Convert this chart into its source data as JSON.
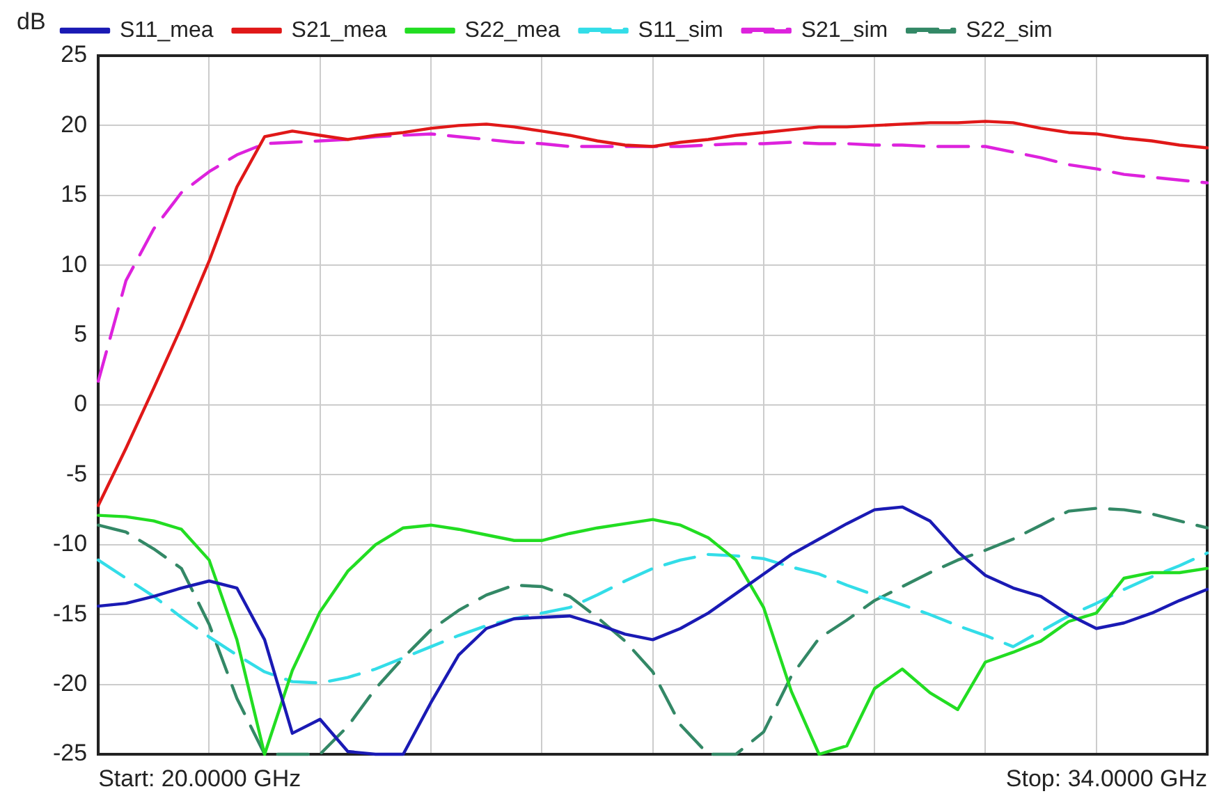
{
  "chart_data": {
    "type": "line",
    "ylabel": "dB",
    "categories": [
      null,
      null,
      null,
      null,
      null,
      null,
      null,
      null,
      null,
      null,
      null,
      null,
      null,
      null,
      null,
      null,
      null,
      null,
      null,
      null,
      null,
      null,
      null,
      null,
      null,
      null,
      null,
      null,
      null,
      null,
      null,
      null,
      null,
      null,
      null,
      null,
      null,
      null,
      null,
      null,
      null
    ],
    "ylim": [
      -25,
      25
    ],
    "yticks": [
      -25,
      -20,
      -15,
      -10,
      -5,
      0,
      5,
      10,
      15,
      20,
      25
    ],
    "tick_labels": "y",
    "grid": true,
    "legend": "top",
    "marker": "none",
    "annotations": [
      "Start: 20.0000 GHz",
      "Stop: 34.0000 GHz"
    ],
    "series": [
      {
        "name": "S11_mea",
        "color": "#1a1ab4",
        "line_style": "solid",
        "values": [
          -14.4,
          -14.2,
          -13.7,
          -13.1,
          -12.6,
          -13.1,
          -16.8,
          -23.5,
          -22.5,
          -24.8,
          -25,
          -25,
          -21.3,
          -17.9,
          -16.0,
          -15.3,
          -15.2,
          -15.1,
          -15.7,
          -16.4,
          -16.8,
          -16.0,
          -14.9,
          -13.5,
          -12.1,
          -10.7,
          -9.6,
          -8.5,
          -7.5,
          -7.3,
          -8.3,
          -10.5,
          -12.2,
          -13.1,
          -13.7,
          -15.0,
          -16.0,
          -15.6,
          -14.9,
          -14.0,
          -13.2
        ]
      },
      {
        "name": "S21_mea",
        "color": "#e01818",
        "line_style": "solid",
        "values": [
          -7.2,
          -3.1,
          1.2,
          5.6,
          10.3,
          15.6,
          19.2,
          19.6,
          19.3,
          19.0,
          19.3,
          19.5,
          19.8,
          20.0,
          20.1,
          19.9,
          19.6,
          19.3,
          18.9,
          18.6,
          18.5,
          18.8,
          19.0,
          19.3,
          19.5,
          19.7,
          19.9,
          19.9,
          20.0,
          20.1,
          20.2,
          20.2,
          20.3,
          20.2,
          19.8,
          19.5,
          19.4,
          19.1,
          18.9,
          18.6,
          18.4
        ]
      },
      {
        "name": "S22_mea",
        "color": "#22dd22",
        "line_style": "solid",
        "values": [
          -7.9,
          -8.0,
          -8.3,
          -8.9,
          -11.1,
          -16.8,
          -25,
          -19.0,
          -14.8,
          -11.9,
          -10.0,
          -8.8,
          -8.6,
          -8.9,
          -9.3,
          -9.7,
          -9.7,
          -9.2,
          -8.8,
          -8.5,
          -8.2,
          -8.6,
          -9.5,
          -11.1,
          -14.5,
          -20.5,
          -25,
          -24.4,
          -20.3,
          -18.9,
          -20.6,
          -21.8,
          -18.4,
          -17.7,
          -16.9,
          -15.5,
          -14.9,
          -12.4,
          -12.0,
          -12.0,
          -11.7
        ]
      },
      {
        "name": "S11_sim",
        "color": "#33dde8",
        "line_style": "dashed",
        "values": [
          -11.1,
          -12.4,
          -13.7,
          -15.2,
          -16.6,
          -17.9,
          -19.1,
          -19.8,
          -19.9,
          -19.5,
          -18.9,
          -18.1,
          -17.3,
          -16.5,
          -15.8,
          -15.3,
          -14.9,
          -14.5,
          -13.6,
          -12.6,
          -11.7,
          -11.1,
          -10.7,
          -10.8,
          -11.0,
          -11.6,
          -12.1,
          -12.9,
          -13.6,
          -14.3,
          -15.0,
          -15.8,
          -16.5,
          -17.3,
          -16.2,
          -15.1,
          -14.2,
          -13.2,
          -12.3,
          -11.5,
          -10.6
        ]
      },
      {
        "name": "S21_sim",
        "color": "#dd22dd",
        "line_style": "dashed",
        "values": [
          1.7,
          8.9,
          12.6,
          15.2,
          16.7,
          17.9,
          18.7,
          18.8,
          18.9,
          19.0,
          19.2,
          19.3,
          19.4,
          19.2,
          19.0,
          18.8,
          18.7,
          18.5,
          18.5,
          18.5,
          18.5,
          18.5,
          18.6,
          18.7,
          18.7,
          18.8,
          18.7,
          18.7,
          18.6,
          18.6,
          18.5,
          18.5,
          18.5,
          18.1,
          17.7,
          17.2,
          16.9,
          16.5,
          16.3,
          16.1,
          15.9
        ]
      },
      {
        "name": "S22_sim",
        "color": "#338866",
        "line_style": "dashed",
        "values": [
          -8.6,
          -9.1,
          -10.3,
          -11.7,
          -15.7,
          -21.0,
          -25,
          -25,
          -25,
          -23.0,
          -20.3,
          -18.1,
          -16.1,
          -14.7,
          -13.6,
          -12.9,
          -13.0,
          -13.7,
          -15.2,
          -16.9,
          -19.1,
          -22.9,
          -25,
          -25,
          -23.4,
          -19.4,
          -16.7,
          -15.4,
          -14.0,
          -13.0,
          -12.0,
          -11.1,
          -10.4,
          -9.6,
          -8.6,
          -7.6,
          -7.4,
          -7.5,
          -7.8,
          -8.3,
          -8.8
        ]
      }
    ]
  }
}
